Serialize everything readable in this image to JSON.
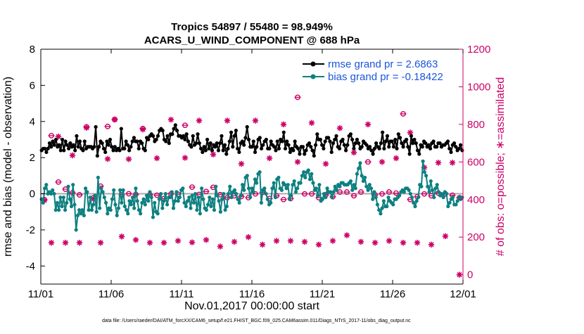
{
  "chart_data": {
    "type": "line",
    "title_line1": "Tropics 54897 / 55480 = 98.949%",
    "title_line2": "ACARS_U_WIND_COMPONENT @ 688 hPa",
    "xlabel": "Nov.01,2017 00:00:00 start",
    "ylabel_left": "rmse and bias (model - observation)",
    "ylabel_right": "# of obs: o=possible; ∗=assimilated",
    "footnote": "data file: /Users/raeder/DAI/ATM_forcXX/CAM6_setup/f.e21.FHIST_BGC.f09_025.CAM6assim.011/Diags_NTrS_2017-11/obs_diag_output.nc",
    "x_range": [
      0,
      30
    ],
    "y_left_range": [
      -5,
      8
    ],
    "y_right_range": [
      -50,
      1200
    ],
    "x_ticks": [
      0,
      5,
      10,
      15,
      20,
      25,
      30
    ],
    "x_tick_labels": [
      "11/01",
      "11/06",
      "11/11",
      "11/16",
      "11/21",
      "11/26",
      "12/01"
    ],
    "y_left_ticks": [
      "-4",
      "-2",
      "0",
      "2",
      "4",
      "6",
      "8"
    ],
    "y_right_ticks": [
      "0",
      "200",
      "400",
      "600",
      "800",
      "1000",
      "1200"
    ],
    "colors": {
      "rmse": "#000000",
      "bias": "#0d8080",
      "obs": "#cc0066",
      "legend_text": "#1a56db",
      "zero": "#aaaaaa"
    },
    "series": [
      {
        "name": "rmse grand pr = 2.6863",
        "axis": "left",
        "values": [
          2.4,
          2.5,
          2.5,
          2.3,
          2.5,
          2.8,
          2.6,
          2.9,
          2.7,
          3.0,
          2.6,
          2.7,
          2.4,
          3.0,
          2.4,
          2.9,
          2.7,
          2.5,
          2.8,
          2.6,
          2.7,
          2.4,
          3.2,
          2.6,
          2.9,
          2.5,
          2.4,
          2.9,
          2.5,
          2.6,
          2.6,
          2.6,
          2.5,
          2.6,
          3.7,
          2.1,
          2.6,
          2.9,
          2.8,
          2.5,
          2.3,
          2.9,
          2.7,
          3.0,
          2.6,
          2.4,
          2.6,
          2.4,
          2.5,
          2.4,
          3.6,
          2.5,
          2.5,
          2.9,
          2.7,
          2.4,
          2.6,
          2.9,
          3.1,
          2.9,
          2.9,
          2.5,
          2.9,
          2.8,
          2.5,
          2.4,
          3.1,
          3.0,
          3.2,
          3.3,
          3.2,
          2.9,
          3.0,
          3.2,
          3.5,
          3.6,
          3.5,
          3.0,
          2.9,
          3.2,
          2.8,
          3.3,
          3.3,
          3.6,
          3.8,
          3.5,
          3.2,
          3.2,
          3.1,
          3.2,
          3.0,
          3.3,
          2.9,
          2.7,
          2.6,
          3.2,
          2.7,
          2.8,
          3.3,
          2.8,
          2.5,
          2.3,
          2.6,
          2.4,
          3.0,
          2.5,
          2.8,
          2.4,
          2.7,
          2.6,
          2.8,
          2.4,
          2.8,
          3.2,
          2.4,
          2.7,
          2.2,
          2.5,
          2.9,
          3.4,
          2.6,
          3.2,
          3.5,
          2.5,
          2.3,
          2.8,
          2.9,
          2.7,
          3.1,
          3.7,
          3.0,
          2.6,
          2.6,
          2.9,
          2.3,
          2.6,
          3.0,
          3.1,
          2.5,
          2.7,
          2.9,
          3.0,
          2.5,
          2.5,
          2.9,
          2.7,
          2.6,
          2.4,
          2.9,
          2.5,
          3.0,
          2.9,
          3.4,
          2.5,
          2.9,
          2.7,
          2.3,
          2.5,
          2.4,
          2.9,
          2.6,
          2.5,
          2.2,
          2.6,
          2.6,
          2.2,
          2.4,
          2.7,
          2.8,
          2.6,
          2.4,
          2.1,
          2.7,
          3.3,
          3.0,
          3.0,
          2.7,
          2.5,
          2.9,
          3.1,
          3.1,
          2.9,
          2.3,
          2.8,
          3.0,
          3.2,
          2.6,
          2.5,
          2.9,
          3.0,
          2.7,
          2.4,
          2.7,
          3.2,
          3.3,
          3.0,
          2.5,
          2.8,
          3.0,
          2.8,
          2.5,
          2.6,
          2.9,
          2.8,
          2.7,
          2.5,
          2.6,
          2.4,
          2.2,
          2.5,
          2.8,
          2.6,
          2.5,
          2.8,
          3.4,
          2.5,
          2.9,
          3.2,
          2.6,
          2.9,
          2.9,
          2.6,
          3.0,
          2.5,
          3.3,
          3.1,
          2.8,
          2.6,
          2.9,
          3.0,
          2.6,
          2.2,
          3.2,
          2.8,
          3.0,
          2.8,
          2.4,
          2.2,
          2.7,
          2.6,
          2.9,
          2.8,
          2.6,
          2.7,
          2.5,
          2.8,
          2.9,
          2.6,
          2.6,
          2.8,
          2.8,
          2.6,
          2.7,
          2.7,
          2.8,
          2.9,
          2.5,
          2.3,
          2.7,
          2.8,
          2.6,
          2.4,
          2.5,
          2.7,
          2.4
        ]
      },
      {
        "name": "bias grand pr = -0.18422",
        "axis": "left",
        "values": [
          -0.3,
          -0.5,
          0.3,
          0.5,
          0.0,
          0.1,
          0.0,
          0.2,
          0.0,
          -0.9,
          -0.5,
          -0.9,
          -0.2,
          -0.7,
          -0.2,
          -0.9,
          -0.5,
          0.4,
          -0.3,
          -0.7,
          0.5,
          -0.6,
          -2.0,
          -1.2,
          -0.9,
          -1.1,
          -0.9,
          -1.2,
          0.3,
          0.1,
          -0.9,
          -0.2,
          -0.9,
          -0.6,
          -0.1,
          -1.0,
          0.9,
          -0.8,
          0.3,
          0.1,
          -0.2,
          -0.5,
          -1.1,
          -0.8,
          -0.9,
          -0.3,
          0.2,
          -0.6,
          -1.2,
          -0.8,
          0.2,
          -0.5,
          0.2,
          -0.7,
          -0.9,
          -1.1,
          -0.4,
          -0.6,
          -0.2,
          -0.8,
          0.3,
          -0.4,
          -0.9,
          -1.1,
          -0.5,
          -0.3,
          -0.6,
          -0.1,
          -0.4,
          0.1,
          -0.2,
          -1.3,
          -0.5,
          -1.0,
          -1.1,
          -0.3,
          0.0,
          -0.8,
          -0.4,
          0.0,
          -0.6,
          -0.2,
          -0.2,
          0.1,
          -0.8,
          -0.4,
          0.1,
          -0.4,
          -0.2,
          0.2,
          0.3,
          -0.5,
          -0.7,
          -0.4,
          -0.2,
          -0.8,
          -0.1,
          -0.5,
          0.0,
          -0.9,
          -0.2,
          -1.1,
          0.3,
          -0.3,
          -0.8,
          -0.9,
          -0.6,
          -0.2,
          -0.7,
          -0.3,
          -0.9,
          0.4,
          -0.1,
          -0.4,
          -1.0,
          -0.3,
          0.0,
          -0.9,
          -0.7,
          0.0,
          0.4,
          -0.2,
          0.1,
          0.2,
          0.0,
          -0.3,
          -0.5,
          -0.1,
          0.5,
          0.2,
          0.9,
          1.0,
          0.3,
          -0.2,
          0.3,
          0.1,
          0.8,
          0.6,
          1.1,
          1.2,
          -0.5,
          0.2,
          0.3,
          0.0,
          -0.3,
          -0.6,
          -0.5,
          0.3,
          0.6,
          -0.2,
          0.8,
          0.9,
          0.3,
          0.2,
          0.6,
          0.5,
          0.3,
          0.5,
          -0.3,
          -0.1,
          0.5,
          0.7,
          0.1,
          0.3,
          0.6,
          0.6,
          1.0,
          1.2,
          0.9,
          1.2,
          1.3,
          0.8,
          1.1,
          0.6,
          0.2,
          0.3,
          -0.1,
          0.5,
          -0.4,
          -0.3,
          0.0,
          -0.2,
          0.3,
          0.1,
          0.1,
          -0.2,
          0.1,
          0.4,
          0.2,
          0.5,
          0.4,
          0.6,
          0.6,
          0.5,
          0.5,
          0.5,
          0.6,
          0.7,
          0.2,
          0.5,
          0.3,
          1.1,
          1.4,
          1.7,
          1.0,
          0.7,
          0.9,
          0.4,
          0.2,
          0.5,
          0.3,
          -0.3,
          0.1,
          -0.2,
          -0.6,
          -0.9,
          -1.1,
          -0.8,
          -0.4,
          -0.7,
          -0.7,
          -0.2,
          -0.4,
          -0.5,
          -0.6,
          -0.3,
          -0.3,
          -0.2,
          -0.1,
          0.1,
          0.2,
          0.1,
          0.3,
          0.3,
          0.2,
          0.0,
          -0.2,
          -0.5,
          -0.7,
          -0.4,
          -0.2,
          0.5,
          0.4,
          1.8,
          1.2,
          1.0,
          0.4,
          0.1,
          0.7,
          0.2,
          -0.2,
          0.3,
          0.5,
          0.1,
          -0.1,
          0.0,
          -0.2,
          0.1,
          0.0,
          -0.7,
          -0.5,
          -0.3,
          -0.2,
          -0.6,
          -0.6,
          -0.4,
          -0.2,
          -0.3,
          -0.2
        ]
      }
    ],
    "obs_possible": [
      [
        0.25,
        400
      ],
      [
        0.75,
        740
      ],
      [
        1.25,
        493
      ],
      [
        1.75,
        455
      ],
      [
        2.25,
        436
      ],
      [
        2.75,
        425
      ],
      [
        3.25,
        787
      ],
      [
        3.75,
        410
      ],
      [
        4.25,
        471
      ],
      [
        4.75,
        789
      ],
      [
        5.25,
        826
      ],
      [
        5.75,
        425
      ],
      [
        6.25,
        431
      ],
      [
        6.75,
        427
      ],
      [
        7.25,
        778
      ],
      [
        7.75,
        425
      ],
      [
        8.25,
        423
      ],
      [
        8.75,
        405
      ],
      [
        9.25,
        430
      ],
      [
        9.75,
        428
      ],
      [
        10.25,
        795
      ],
      [
        10.75,
        466
      ],
      [
        11.25,
        427
      ],
      [
        11.75,
        443
      ],
      [
        12.25,
        465
      ],
      [
        12.75,
        426
      ],
      [
        13.25,
        410
      ],
      [
        13.75,
        420
      ],
      [
        14.25,
        416
      ],
      [
        14.75,
        410
      ],
      [
        15.25,
        430
      ],
      [
        15.75,
        438
      ],
      [
        16.25,
        405
      ],
      [
        16.75,
        420
      ],
      [
        17.25,
        400
      ],
      [
        17.75,
        405
      ],
      [
        18.25,
        944
      ],
      [
        18.75,
        430
      ],
      [
        19.25,
        430
      ],
      [
        19.75,
        410
      ],
      [
        20.25,
        425
      ],
      [
        20.75,
        415
      ],
      [
        21.25,
        440
      ],
      [
        21.75,
        440
      ],
      [
        22.25,
        420
      ],
      [
        22.75,
        440
      ],
      [
        23.25,
        600
      ],
      [
        23.75,
        425
      ],
      [
        24.25,
        430
      ],
      [
        24.75,
        440
      ],
      [
        25.25,
        434
      ],
      [
        25.75,
        856
      ],
      [
        26.25,
        400
      ],
      [
        26.75,
        415
      ],
      [
        27.25,
        430
      ],
      [
        27.75,
        420
      ],
      [
        28.25,
        434
      ],
      [
        28.75,
        430
      ],
      [
        29.25,
        423
      ],
      [
        29.75,
        410
      ]
    ],
    "obs_assimilated": [
      [
        0.25,
        395
      ],
      [
        0.75,
        170
      ],
      [
        1.25,
        735
      ],
      [
        1.75,
        170
      ],
      [
        2.25,
        635
      ],
      [
        2.75,
        170
      ],
      [
        3.25,
        782
      ],
      [
        3.75,
        403
      ],
      [
        4.25,
        170
      ],
      [
        4.75,
        616
      ],
      [
        5.25,
        826
      ],
      [
        5.75,
        203
      ],
      [
        6.25,
        615
      ],
      [
        6.75,
        185
      ],
      [
        7.25,
        773
      ],
      [
        7.75,
        170
      ],
      [
        8.25,
        620
      ],
      [
        8.75,
        170
      ],
      [
        9.25,
        825
      ],
      [
        9.75,
        180
      ],
      [
        10.25,
        622
      ],
      [
        10.75,
        172
      ],
      [
        11.25,
        820
      ],
      [
        11.75,
        185
      ],
      [
        12.25,
        640
      ],
      [
        12.75,
        150
      ],
      [
        13.25,
        820
      ],
      [
        13.75,
        175
      ],
      [
        14.25,
        590
      ],
      [
        14.75,
        200
      ],
      [
        15.25,
        820
      ],
      [
        15.75,
        160
      ],
      [
        16.25,
        620
      ],
      [
        16.75,
        180
      ],
      [
        17.25,
        800
      ],
      [
        17.75,
        180
      ],
      [
        18.25,
        600
      ],
      [
        18.75,
        175
      ],
      [
        19.25,
        808
      ],
      [
        19.75,
        160
      ],
      [
        20.25,
        590
      ],
      [
        20.75,
        180
      ],
      [
        21.25,
        780
      ],
      [
        21.75,
        210
      ],
      [
        22.25,
        650
      ],
      [
        22.75,
        175
      ],
      [
        23.25,
        800
      ],
      [
        23.75,
        170
      ],
      [
        24.25,
        600
      ],
      [
        24.75,
        180
      ],
      [
        25.25,
        620
      ],
      [
        25.75,
        170
      ],
      [
        26.25,
        756
      ],
      [
        26.75,
        170
      ],
      [
        27.25,
        570
      ],
      [
        27.75,
        160
      ],
      [
        28.25,
        596
      ],
      [
        28.75,
        205
      ],
      [
        29.25,
        596
      ],
      [
        29.75,
        0
      ]
    ]
  }
}
